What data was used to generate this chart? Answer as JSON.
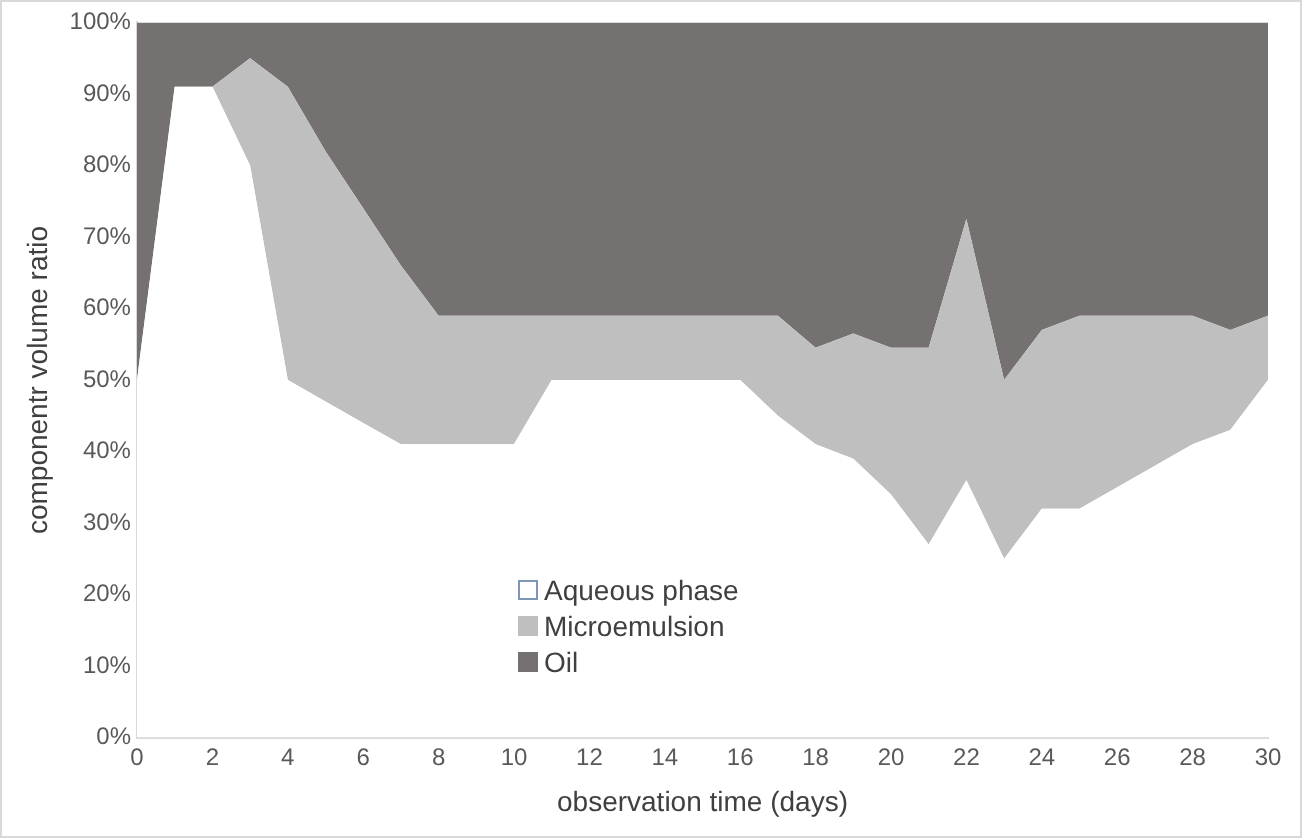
{
  "chart_data": {
    "type": "area",
    "stacked": true,
    "xlabel": "observation time (days)",
    "ylabel": "componentr volume ratio",
    "x": [
      0,
      1,
      2,
      3,
      4,
      5,
      6,
      7,
      8,
      9,
      10,
      11,
      12,
      13,
      14,
      15,
      16,
      17,
      18,
      19,
      20,
      21,
      22,
      23,
      24,
      25,
      26,
      27,
      28,
      29,
      30
    ],
    "xlim": [
      0,
      30
    ],
    "xticks": [
      0,
      2,
      4,
      6,
      8,
      10,
      12,
      14,
      16,
      18,
      20,
      22,
      24,
      26,
      28,
      30
    ],
    "ylim": [
      0,
      100
    ],
    "yticks": [
      {
        "value": 0,
        "label": "0%"
      },
      {
        "value": 10,
        "label": "10%"
      },
      {
        "value": 20,
        "label": "20%"
      },
      {
        "value": 30,
        "label": "30%"
      },
      {
        "value": 40,
        "label": "40%"
      },
      {
        "value": 50,
        "label": "50%"
      },
      {
        "value": 60,
        "label": "60%"
      },
      {
        "value": 70,
        "label": "70%"
      },
      {
        "value": 80,
        "label": "80%"
      },
      {
        "value": 90,
        "label": "90%"
      },
      {
        "value": 100,
        "label": "100%"
      }
    ],
    "grid": false,
    "legend": "bottom",
    "series": [
      {
        "name": "Aqueous phase",
        "color": "#ffffff",
        "values": [
          50,
          91,
          91,
          80,
          50,
          47,
          44,
          41,
          41,
          41,
          41,
          50,
          50,
          50,
          50,
          50,
          50,
          45,
          41,
          39,
          34,
          27,
          36,
          25,
          32,
          32,
          35,
          38,
          41,
          43,
          50
        ]
      },
      {
        "name": "Microemulsion",
        "color": "#bfbfbf",
        "values": [
          0,
          0,
          0,
          15,
          41,
          35,
          30,
          25,
          18,
          18,
          18,
          9,
          9,
          9,
          9,
          9,
          9,
          14,
          13.5,
          17.5,
          20.5,
          27.5,
          36.5,
          25,
          25,
          27,
          24,
          21,
          18,
          14,
          9
        ]
      },
      {
        "name": "Oil",
        "color": "#767171",
        "values": [
          50,
          9,
          9,
          5,
          9,
          18,
          26,
          34,
          41,
          41,
          41,
          41,
          41,
          41,
          41,
          41,
          41,
          41,
          45.5,
          43.5,
          45.5,
          45.5,
          27.5,
          50,
          43,
          41,
          41,
          41,
          41,
          43,
          41
        ]
      }
    ]
  }
}
